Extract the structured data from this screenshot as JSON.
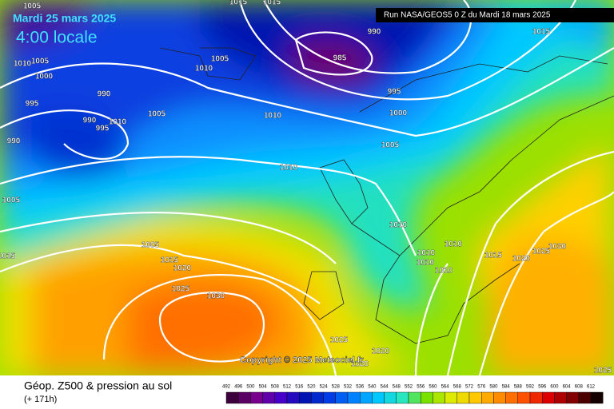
{
  "header": {
    "date": "Mardi 25 mars 2025",
    "time": "4:00 locale",
    "run": "Run NASA/GEOS5 0 Z du Mardi 18 mars 2025"
  },
  "map": {
    "isobar_labels": [
      "1005",
      "1015",
      "1015",
      "990",
      "1015",
      "1010",
      "1005",
      "1000",
      "1005",
      "1010",
      "985",
      "995",
      "990",
      "995",
      "1000",
      "990",
      "1010",
      "995",
      "1005",
      "1010",
      "990",
      "1005",
      "1010",
      "1005",
      "1010",
      "1005",
      "1015",
      "1010",
      "1015",
      "1010",
      "1020",
      "1010",
      "1010",
      "1015",
      "1020",
      "1025",
      "1030",
      "1025",
      "1030",
      "1025",
      "1020",
      "1020",
      "1025"
    ],
    "copyright": "Copyright © 2025 Meteociel.fr"
  },
  "footer": {
    "title": "Géop. Z500 & pression au sol",
    "lead": "(+ 171h)",
    "scale": [
      492,
      496,
      500,
      504,
      508,
      512,
      516,
      520,
      524,
      528,
      532,
      536,
      540,
      544,
      548,
      552,
      556,
      560,
      564,
      568,
      572,
      576,
      580,
      584,
      588,
      592,
      596,
      600,
      604,
      608,
      612
    ]
  }
}
